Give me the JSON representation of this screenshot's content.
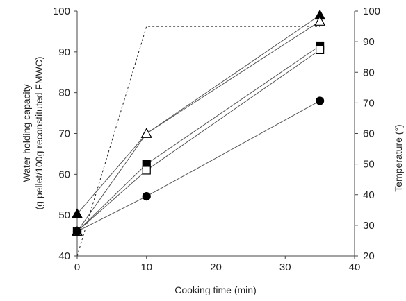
{
  "chart_data": {
    "type": "line",
    "x_axis": {
      "label": "Cooking time (min)",
      "range": [
        0,
        40
      ],
      "ticks": [
        "0",
        "10",
        "20",
        "30",
        "40"
      ]
    },
    "y_left": {
      "label_line1": "Water holding capacity",
      "label_line2": "(g pellet/100g reconstituted FMWC)",
      "range": [
        40,
        100
      ],
      "ticks": [
        "40",
        "50",
        "60",
        "70",
        "80",
        "90",
        "100"
      ]
    },
    "y_right": {
      "label": "Temperature (°)",
      "range": [
        20,
        100
      ],
      "ticks": [
        "20",
        "30",
        "40",
        "50",
        "60",
        "70",
        "80",
        "90",
        "100"
      ]
    },
    "grid": false,
    "series": [
      {
        "marker": "triangle-filled",
        "x": [
          0,
          10,
          35
        ],
        "y": [
          50.3,
          70,
          99
        ]
      },
      {
        "marker": "triangle-open",
        "x": [
          0,
          10,
          35
        ],
        "y": [
          46,
          70,
          97.5
        ]
      },
      {
        "marker": "square-filled",
        "x": [
          0,
          10,
          35
        ],
        "y": [
          46,
          62.5,
          91.5
        ]
      },
      {
        "marker": "square-open",
        "x": [
          0,
          10,
          35
        ],
        "y": [
          46,
          61,
          90.5
        ]
      },
      {
        "marker": "circle-filled",
        "x": [
          0,
          10,
          35
        ],
        "y": [
          46,
          54.6,
          78
        ]
      }
    ],
    "temperature_profile": {
      "axis": "right",
      "style": "dashed",
      "x": [
        0,
        10,
        35
      ],
      "y": [
        20,
        95,
        95
      ]
    }
  }
}
